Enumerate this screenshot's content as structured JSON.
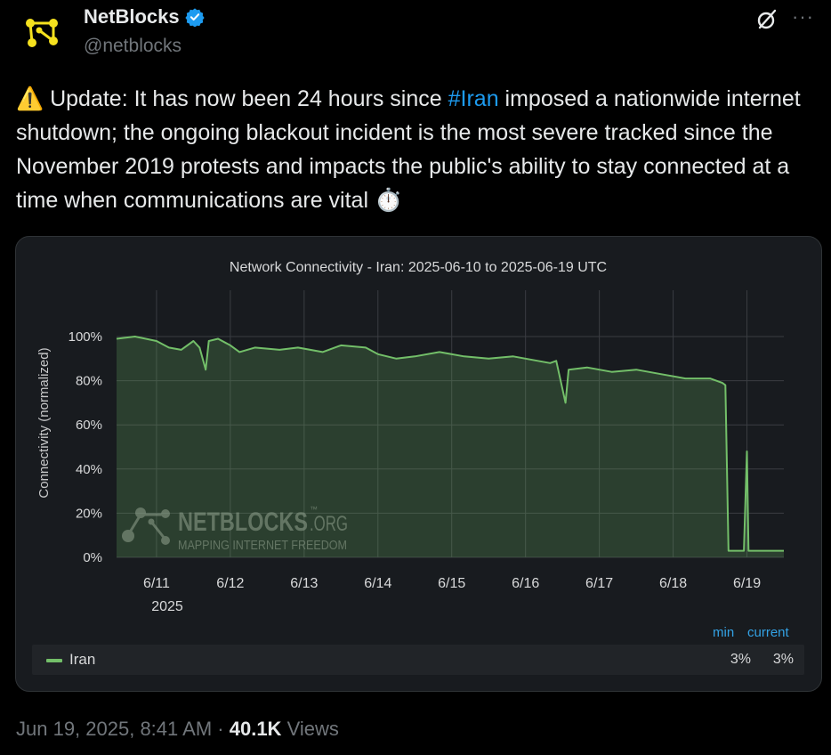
{
  "author": {
    "name": "NetBlocks",
    "handle": "@netblocks"
  },
  "tweet": {
    "warning_emoji": "⚠️",
    "text_before": " Update: It has now been 24 hours since ",
    "hashtag": "#Iran",
    "text_after": " imposed a nationwide internet shutdown; the ongoing blackout incident is the most severe tracked since the November 2019 protests and impacts the public's ability to stay connected at a time when communications are vital ",
    "end_emoji": "⏱️"
  },
  "colors": {
    "accent": "#1d9bf0",
    "series": "#73bf69",
    "legend_header": "#33a2e5"
  },
  "chart_data": {
    "type": "area",
    "title": "Network Connectivity - Iran: 2025-06-10 to 2025-06-19 UTC",
    "ylabel": "Connectivity (normalized)",
    "xlabel": "",
    "ylim": [
      0,
      100
    ],
    "xlim": [
      "2025-06-10T11:00",
      "2025-06-19T12:00"
    ],
    "y_ticks": [
      "0%",
      "20%",
      "40%",
      "60%",
      "80%",
      "100%"
    ],
    "y_tick_values": [
      0,
      20,
      40,
      60,
      80,
      100
    ],
    "x_ticks": [
      "6/11",
      "6/12",
      "6/13",
      "6/14",
      "6/15",
      "6/16",
      "6/17",
      "6/18",
      "6/19"
    ],
    "x_tick_days": [
      11,
      12,
      13,
      14,
      15,
      16,
      17,
      18,
      19
    ],
    "x_year_label": "2025",
    "grid": true,
    "series": [
      {
        "name": "Iran",
        "points": [
          [
            "2025-06-10T11:00",
            99
          ],
          [
            "2025-06-10T17:00",
            100
          ],
          [
            "2025-06-11T00:00",
            98
          ],
          [
            "2025-06-11T04:00",
            95
          ],
          [
            "2025-06-11T08:00",
            94
          ],
          [
            "2025-06-11T12:00",
            98
          ],
          [
            "2025-06-11T14:00",
            95
          ],
          [
            "2025-06-11T16:00",
            85
          ],
          [
            "2025-06-11T17:00",
            98
          ],
          [
            "2025-06-11T20:00",
            99
          ],
          [
            "2025-06-12T00:00",
            96
          ],
          [
            "2025-06-12T03:00",
            93
          ],
          [
            "2025-06-12T08:00",
            95
          ],
          [
            "2025-06-12T16:00",
            94
          ],
          [
            "2025-06-12T22:00",
            95
          ],
          [
            "2025-06-13T06:00",
            93
          ],
          [
            "2025-06-13T12:00",
            96
          ],
          [
            "2025-06-13T20:00",
            95
          ],
          [
            "2025-06-14T00:00",
            92
          ],
          [
            "2025-06-14T06:00",
            90
          ],
          [
            "2025-06-14T12:00",
            91
          ],
          [
            "2025-06-14T20:00",
            93
          ],
          [
            "2025-06-15T04:00",
            91
          ],
          [
            "2025-06-15T12:00",
            90
          ],
          [
            "2025-06-15T20:00",
            91
          ],
          [
            "2025-06-16T04:00",
            89
          ],
          [
            "2025-06-16T08:00",
            88
          ],
          [
            "2025-06-16T10:00",
            89
          ],
          [
            "2025-06-16T13:00",
            70
          ],
          [
            "2025-06-16T14:00",
            85
          ],
          [
            "2025-06-16T20:00",
            86
          ],
          [
            "2025-06-17T04:00",
            84
          ],
          [
            "2025-06-17T12:00",
            85
          ],
          [
            "2025-06-17T20:00",
            83
          ],
          [
            "2025-06-18T04:00",
            81
          ],
          [
            "2025-06-18T12:00",
            81
          ],
          [
            "2025-06-18T16:00",
            79
          ],
          [
            "2025-06-18T17:00",
            78
          ],
          [
            "2025-06-18T18:00",
            3
          ],
          [
            "2025-06-18T23:00",
            3
          ],
          [
            "2025-06-19T00:00",
            48
          ],
          [
            "2025-06-19T00:30",
            3
          ],
          [
            "2025-06-19T06:00",
            3
          ],
          [
            "2025-06-19T12:00",
            3
          ]
        ]
      }
    ]
  },
  "watermark": {
    "brand": "NETBLOCKS",
    "suffix": ".ORG",
    "tm": "™",
    "tagline": "MAPPING INTERNET FREEDOM"
  },
  "legend": {
    "headers": {
      "min": "min",
      "current": "current"
    },
    "series_name": "Iran",
    "min": "3%",
    "current": "3%"
  },
  "footer": {
    "date": "Jun 19, 2025, 8:41 AM",
    "separator": " · ",
    "views_count": "40.1K",
    "views_label": " Views"
  }
}
